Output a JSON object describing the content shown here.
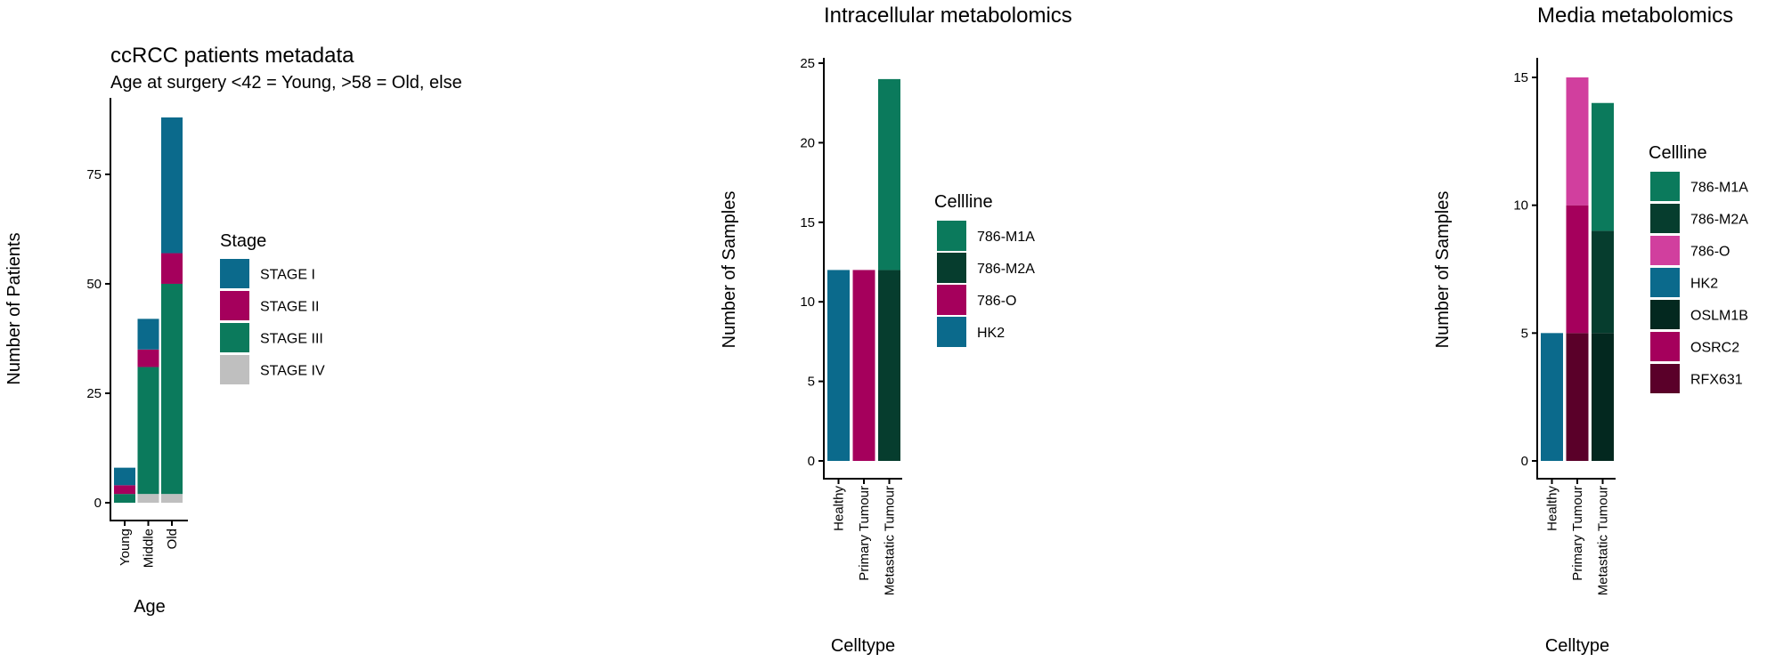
{
  "chart_data": [
    {
      "type": "bar",
      "stacked": true,
      "title": "ccRCC patients metadata",
      "subtitle": "Age at surgery <42 = Young,  >58 = Old, else",
      "xlabel": "Age",
      "ylabel": "Number of Patients",
      "ylim": [
        0,
        90
      ],
      "yticks": [
        "0",
        "25",
        "50",
        "75"
      ],
      "categories": [
        "Young",
        "Middle",
        "Old"
      ],
      "legend_title": "Stage",
      "legend_position": "right",
      "series": [
        {
          "name": "STAGE I",
          "color": "#0b6a8c",
          "values": [
            4,
            7,
            31
          ]
        },
        {
          "name": "STAGE II",
          "color": "#a5005c",
          "values": [
            2,
            4,
            7
          ]
        },
        {
          "name": "STAGE III",
          "color": "#0b7a5c",
          "values": [
            2,
            29,
            48
          ]
        },
        {
          "name": "STAGE IV",
          "color": "#bfbfbf",
          "values": [
            0,
            2,
            2
          ]
        }
      ],
      "stack_order": [
        "STAGE IV",
        "STAGE III",
        "STAGE II",
        "STAGE I"
      ]
    },
    {
      "type": "bar",
      "stacked": true,
      "title": "Intracellular metabolomics",
      "xlabel": "Celltype",
      "ylabel": "Number of Samples",
      "ylim": [
        0,
        25
      ],
      "yticks": [
        "0",
        "5",
        "10",
        "15",
        "20",
        "25"
      ],
      "categories": [
        "Healthy",
        "Primary Tumour",
        "Metastatic Tumour"
      ],
      "legend_title": "Cellline",
      "legend_position": "right",
      "series": [
        {
          "name": "786-M1A",
          "color": "#0b7a5c",
          "values": [
            0,
            0,
            12
          ]
        },
        {
          "name": "786-M2A",
          "color": "#063d2e",
          "values": [
            0,
            0,
            12
          ]
        },
        {
          "name": "786-O",
          "color": "#a5005c",
          "values": [
            0,
            12,
            0
          ]
        },
        {
          "name": "HK2",
          "color": "#0b6a8c",
          "values": [
            12,
            0,
            0
          ]
        }
      ],
      "stack_order": [
        "HK2",
        "786-O",
        "786-M2A",
        "786-M1A"
      ]
    },
    {
      "type": "bar",
      "stacked": true,
      "title": "Media metabolomics",
      "xlabel": "Celltype",
      "ylabel": "Number of Samples",
      "ylim": [
        0,
        15
      ],
      "yticks": [
        "0",
        "5",
        "10",
        "15"
      ],
      "categories": [
        "Healthy",
        "Primary Tumour",
        "Metastatic Tumour"
      ],
      "legend_title": "Cellline",
      "legend_position": "right",
      "series": [
        {
          "name": "786-M1A",
          "color": "#0b7a5c",
          "values": [
            0,
            0,
            5
          ]
        },
        {
          "name": "786-M2A",
          "color": "#063d2e",
          "values": [
            0,
            0,
            4
          ]
        },
        {
          "name": "786-O",
          "color": "#d13f9e",
          "values": [
            0,
            5,
            0
          ]
        },
        {
          "name": "HK2",
          "color": "#0b6a8c",
          "values": [
            5,
            0,
            0
          ]
        },
        {
          "name": "OSLM1B",
          "color": "#03281f",
          "values": [
            0,
            0,
            5
          ]
        },
        {
          "name": "OSRC2",
          "color": "#a5005c",
          "values": [
            0,
            5,
            0
          ]
        },
        {
          "name": "RFX631",
          "color": "#5a0029",
          "values": [
            0,
            5,
            0
          ]
        }
      ],
      "stack_order": [
        "OSLM1B",
        "786-M2A",
        "786-M1A",
        "RFX631",
        "OSRC2",
        "786-O",
        "HK2"
      ]
    }
  ]
}
